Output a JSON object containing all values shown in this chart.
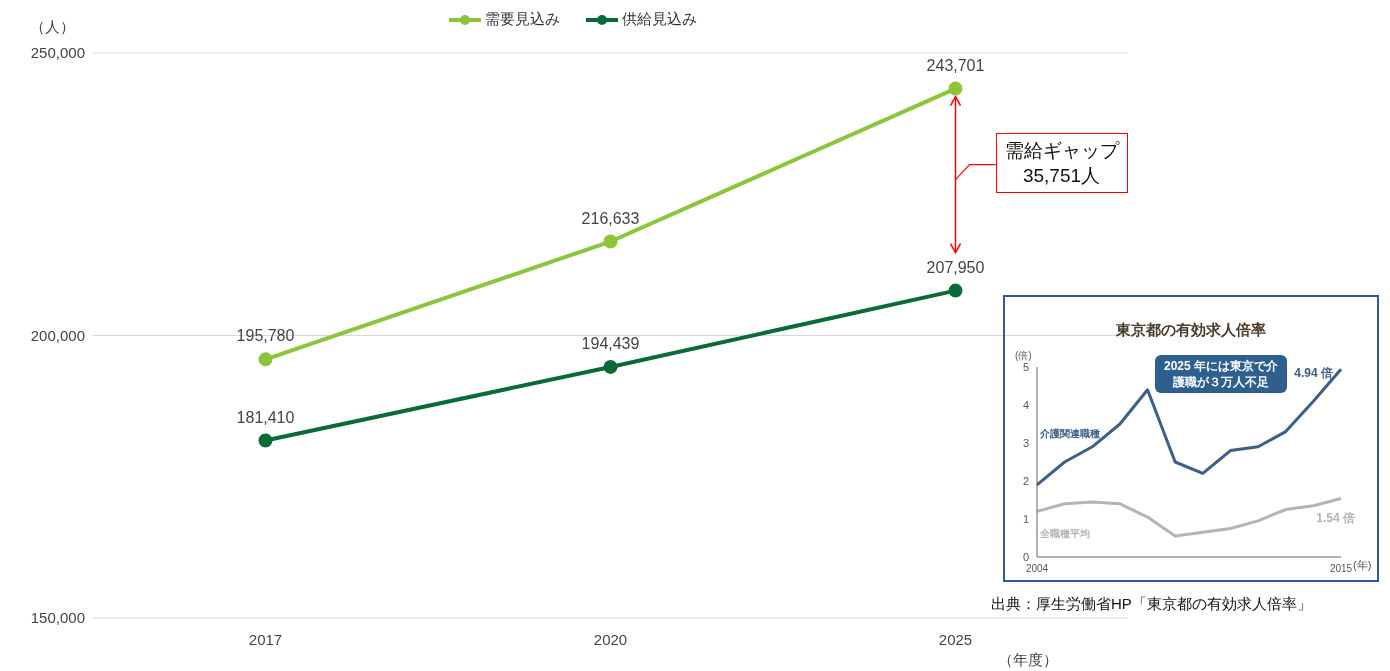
{
  "chart_data": [
    {
      "type": "line",
      "categories": [
        "2017",
        "2020",
        "2025"
      ],
      "series": [
        {
          "name": "需要見込み",
          "color": "#8cc43c",
          "values": [
            195780,
            216633,
            243701
          ],
          "value_labels": [
            "195,780",
            "216,633",
            "243,701"
          ]
        },
        {
          "name": "供給見込み",
          "color": "#0b6b38",
          "values": [
            181410,
            194439,
            207950
          ],
          "value_labels": [
            "181,410",
            "194,439",
            "207,950"
          ]
        }
      ],
      "ylim": [
        150000,
        250000
      ],
      "yticks": [
        {
          "value": 150000,
          "label": "150,000"
        },
        {
          "value": 200000,
          "label": "200,000"
        },
        {
          "value": 250000,
          "label": "250,000"
        }
      ],
      "ylabel": "（人）",
      "xlabel": "（年度）",
      "grid": "y",
      "legend": "top",
      "marker": "circle",
      "annotations": [
        "需給ギャップ\n35,751人"
      ]
    },
    {
      "type": "line",
      "title": "東京都の有効求人倍率",
      "x": [
        2004,
        2005,
        2006,
        2007,
        2008,
        2009,
        2010,
        2011,
        2012,
        2013,
        2014,
        2015
      ],
      "series": [
        {
          "name": "介護関連職種",
          "color": "#3b5f86",
          "values": [
            1.9,
            2.5,
            2.9,
            3.5,
            4.4,
            2.5,
            2.2,
            2.8,
            2.9,
            3.3,
            4.1,
            4.94
          ],
          "value_labels": [
            null,
            null,
            null,
            null,
            null,
            null,
            null,
            null,
            null,
            null,
            null,
            "4.94 倍"
          ]
        },
        {
          "name": "全職種平均",
          "color": "#b4b4b4",
          "values": [
            1.2,
            1.4,
            1.45,
            1.4,
            1.05,
            0.55,
            0.65,
            0.75,
            0.95,
            1.25,
            1.35,
            1.54
          ],
          "value_labels": [
            null,
            null,
            null,
            null,
            null,
            null,
            null,
            null,
            null,
            null,
            null,
            "1.54 倍"
          ]
        }
      ],
      "xlim": [
        2004,
        2015
      ],
      "xticks": [
        2004,
        2015
      ],
      "ylim": [
        0,
        5
      ],
      "yticks": [
        0,
        1,
        2,
        3,
        4,
        5
      ],
      "ylabel": "(倍)",
      "xlabel": "(年)",
      "marker": "none",
      "annotations": [
        "2025 年には東京で介護職が３万人不足",
        "出典：厚生労働省HP「東京都の有効求人倍率」"
      ]
    }
  ]
}
